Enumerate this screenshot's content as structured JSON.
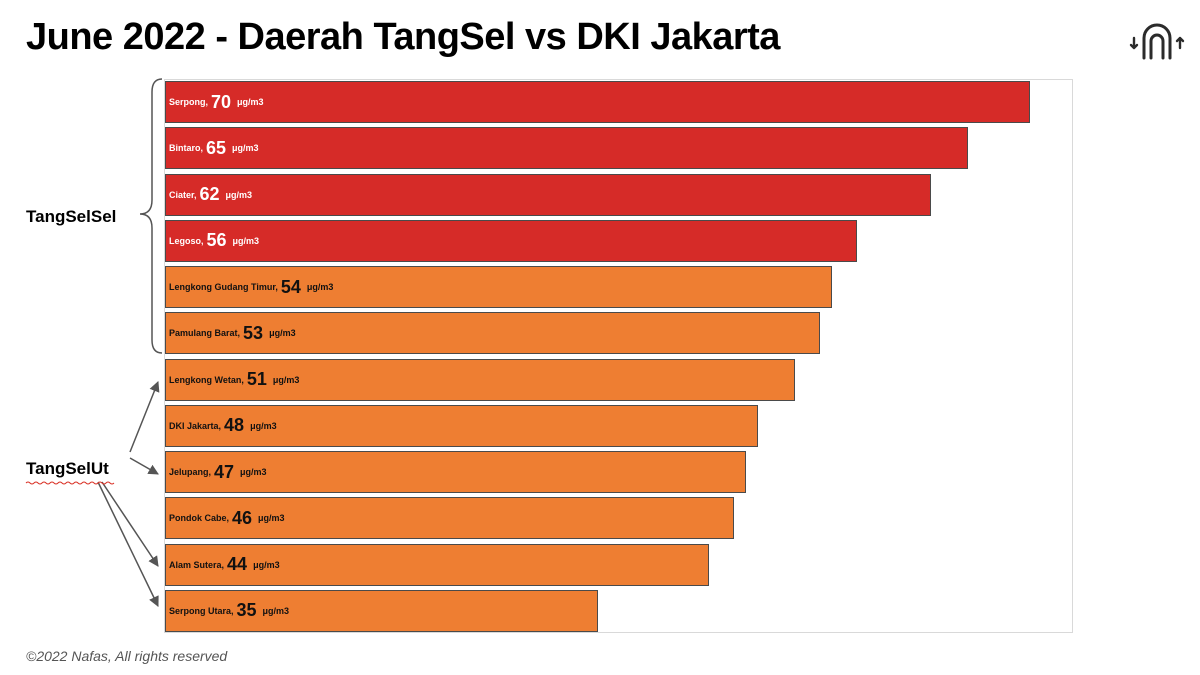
{
  "title": "June 2022 - Daerah TangSel vs DKI Jakarta",
  "footer": "©2022 Nafas, All rights reserved",
  "logo_icon": "nafas-logo-icon",
  "colors": {
    "red": "#d62b28",
    "orange": "#ee7e32",
    "border": "#4a4a4a"
  },
  "groups": {
    "south": "TangSelSel",
    "north": "TangSelUt"
  },
  "chart_data": {
    "type": "bar",
    "orientation": "horizontal",
    "unit": "μg/m3",
    "xlim": [
      0,
      80
    ],
    "grid": false,
    "categories": [
      "Serpong",
      "Bintaro",
      "Ciater",
      "Legoso",
      "Lengkong Gudang Timur",
      "Pamulang Barat",
      "Lengkong Wetan",
      "DKI Jakarta",
      "Jelupang",
      "Pondok Cabe",
      "Alam Sutera",
      "Serpong Utara"
    ],
    "values": [
      70,
      65,
      62,
      56,
      54,
      53,
      51,
      48,
      47,
      46,
      44,
      35
    ],
    "bar_colors": [
      "red",
      "red",
      "red",
      "red",
      "orange",
      "orange",
      "orange",
      "orange",
      "orange",
      "orange",
      "orange",
      "orange"
    ]
  }
}
